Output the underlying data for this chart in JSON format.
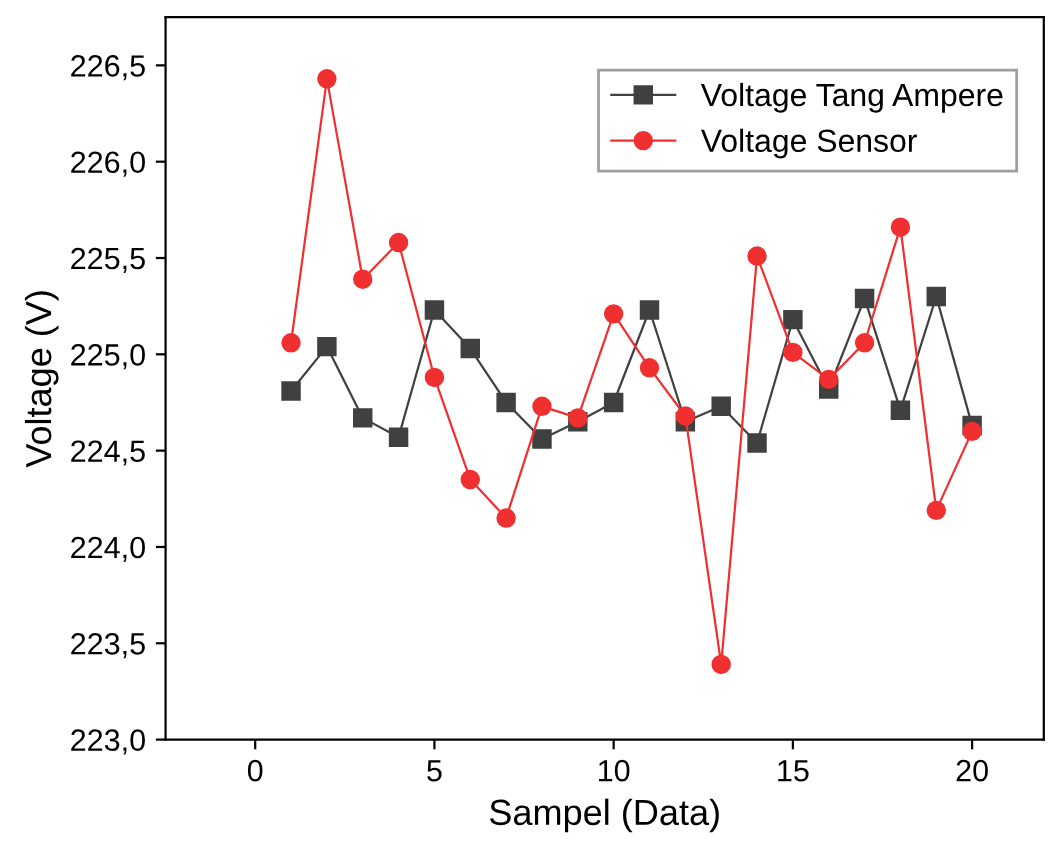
{
  "chart_data": {
    "type": "line",
    "xlabel": "Sampel (Data)",
    "ylabel": "Voltage (V)",
    "x": [
      1,
      2,
      3,
      4,
      5,
      6,
      7,
      8,
      9,
      10,
      11,
      12,
      13,
      14,
      15,
      16,
      17,
      18,
      19,
      20
    ],
    "series": [
      {
        "name": "Voltage Tang Ampere",
        "color": "#404040",
        "marker": "square",
        "values": [
          224.81,
          225.04,
          224.67,
          224.57,
          225.23,
          225.03,
          224.75,
          224.56,
          224.65,
          224.75,
          225.23,
          224.65,
          224.73,
          224.54,
          225.18,
          224.82,
          225.29,
          224.71,
          225.3,
          224.63
        ]
      },
      {
        "name": "Voltage Sensor",
        "color": "#f03030",
        "marker": "circle",
        "values": [
          225.06,
          226.43,
          225.39,
          225.58,
          224.88,
          224.35,
          224.15,
          224.73,
          224.67,
          225.21,
          224.93,
          224.68,
          223.39,
          225.51,
          225.01,
          224.87,
          225.06,
          225.66,
          224.19,
          224.6
        ]
      }
    ],
    "xlim": [
      -2.5,
      22
    ],
    "xticks": [
      0,
      5,
      10,
      15,
      20
    ],
    "ylim": [
      223.0,
      226.75
    ],
    "yticks": [
      {
        "value": 223.0,
        "label": "223,0"
      },
      {
        "value": 223.5,
        "label": "223,5"
      },
      {
        "value": 224.0,
        "label": "224,0"
      },
      {
        "value": 224.5,
        "label": "224,5"
      },
      {
        "value": 225.0,
        "label": "225,0"
      },
      {
        "value": 225.5,
        "label": "225,5"
      },
      {
        "value": 226.0,
        "label": "226,0"
      },
      {
        "value": 226.5,
        "label": "226,5"
      }
    ],
    "legend": "top right",
    "grid": false,
    "line_style": "solid"
  }
}
